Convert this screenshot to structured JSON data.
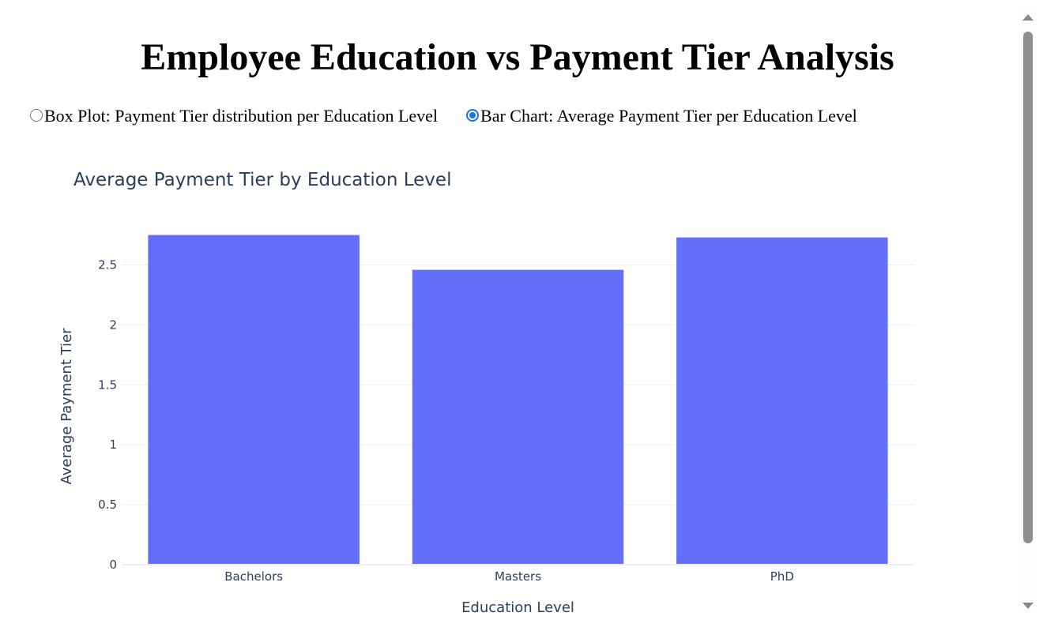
{
  "page": {
    "title": "Employee Education vs Payment Tier Analysis"
  },
  "view_selector": {
    "options": [
      {
        "label": "Box Plot: Payment Tier distribution per Education Level",
        "checked": false
      },
      {
        "label": "Bar Chart: Average Payment Tier per Education Level",
        "checked": true
      }
    ]
  },
  "chart_data": {
    "type": "bar",
    "title": "Average Payment Tier by Education Level",
    "xlabel": "Education Level",
    "ylabel": "Average Payment Tier",
    "categories": [
      "Bachelors",
      "Masters",
      "PhD"
    ],
    "values": [
      2.75,
      2.46,
      2.73
    ],
    "ylim": [
      0,
      2.8
    ],
    "yticks": [
      0,
      0.5,
      1,
      1.5,
      2,
      2.5
    ],
    "ytick_labels": [
      "0",
      "0.5",
      "1",
      "1.5",
      "2",
      "2.5"
    ],
    "bar_color": "#636efa",
    "title_color": "#2a3f5f",
    "grid": true
  }
}
